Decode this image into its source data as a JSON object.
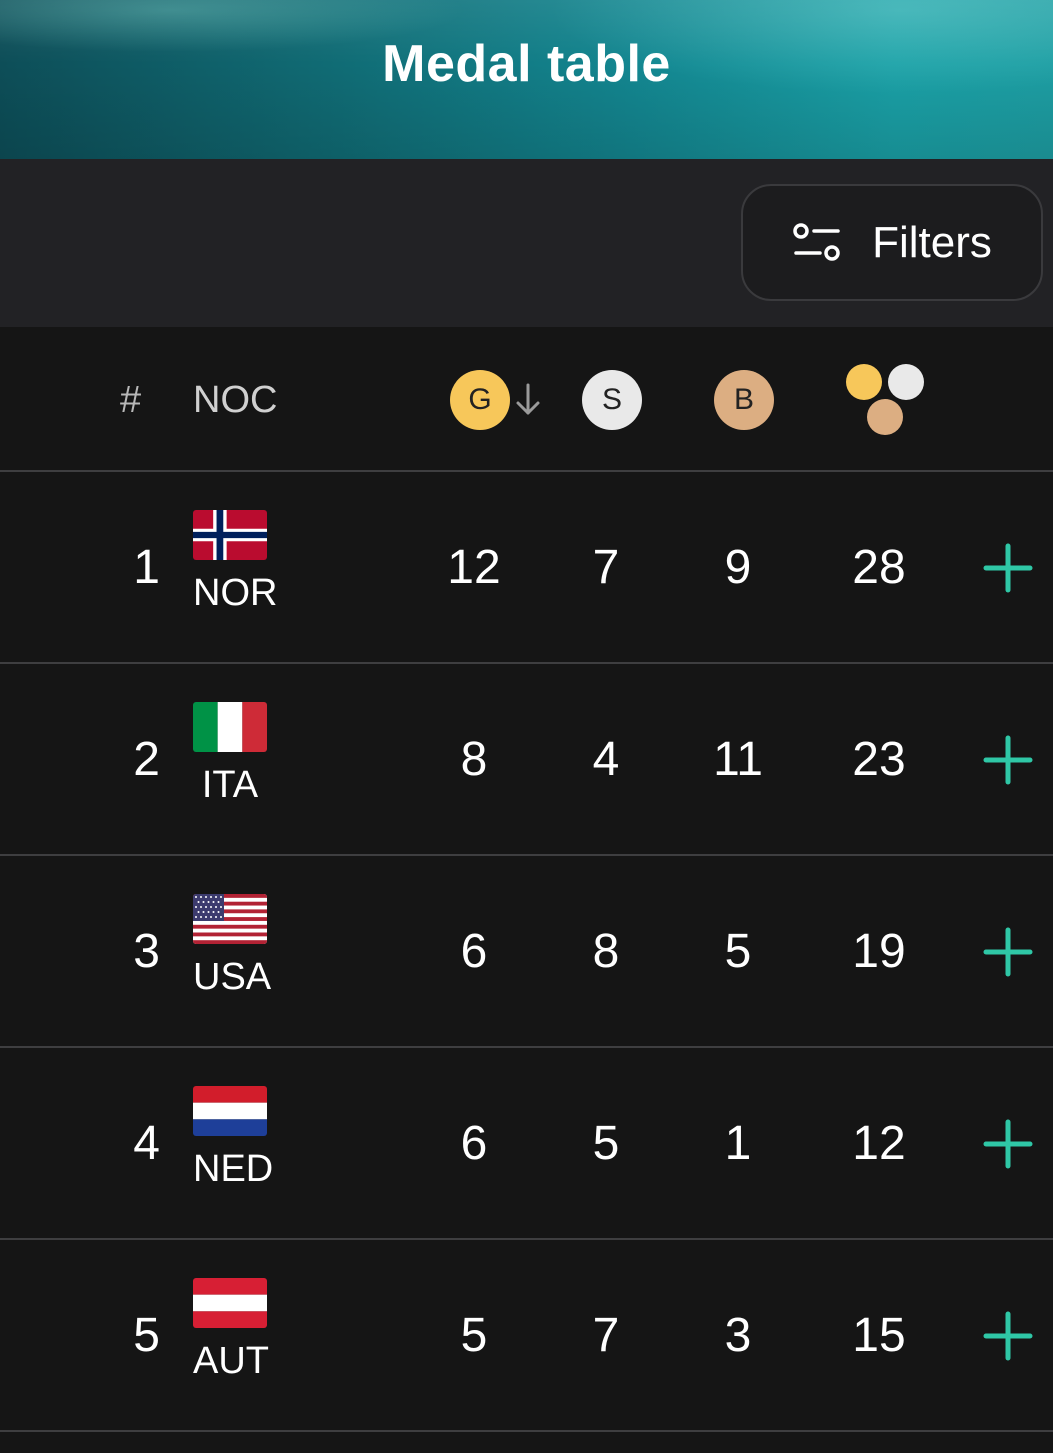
{
  "header": {
    "title": "Medal table"
  },
  "filters": {
    "label": "Filters",
    "icon": "sliders-icon"
  },
  "table": {
    "columns": {
      "rank": "#",
      "noc": "NOC",
      "gold": "G",
      "silver": "S",
      "bronze": "B",
      "total_icon": "medals-total-icon",
      "sorted_by": "gold",
      "sort_direction": "descending"
    },
    "colors": {
      "gold": "#f7c75a",
      "silver": "#e9e9e9",
      "bronze": "#dcae82",
      "accent": "#2fc7a6"
    },
    "rows": [
      {
        "rank": "1",
        "noc": "NOR",
        "flag": "norway-flag-icon",
        "gold": "12",
        "silver": "7",
        "bronze": "9",
        "total": "28"
      },
      {
        "rank": "2",
        "noc": "ITA",
        "flag": "italy-flag-icon",
        "gold": "8",
        "silver": "4",
        "bronze": "11",
        "total": "23"
      },
      {
        "rank": "3",
        "noc": "USA",
        "flag": "usa-flag-icon",
        "gold": "6",
        "silver": "8",
        "bronze": "5",
        "total": "19"
      },
      {
        "rank": "4",
        "noc": "NED",
        "flag": "netherlands-flag-icon",
        "gold": "6",
        "silver": "5",
        "bronze": "1",
        "total": "12"
      },
      {
        "rank": "5",
        "noc": "AUT",
        "flag": "austria-flag-icon",
        "gold": "5",
        "silver": "7",
        "bronze": "3",
        "total": "15"
      }
    ]
  }
}
